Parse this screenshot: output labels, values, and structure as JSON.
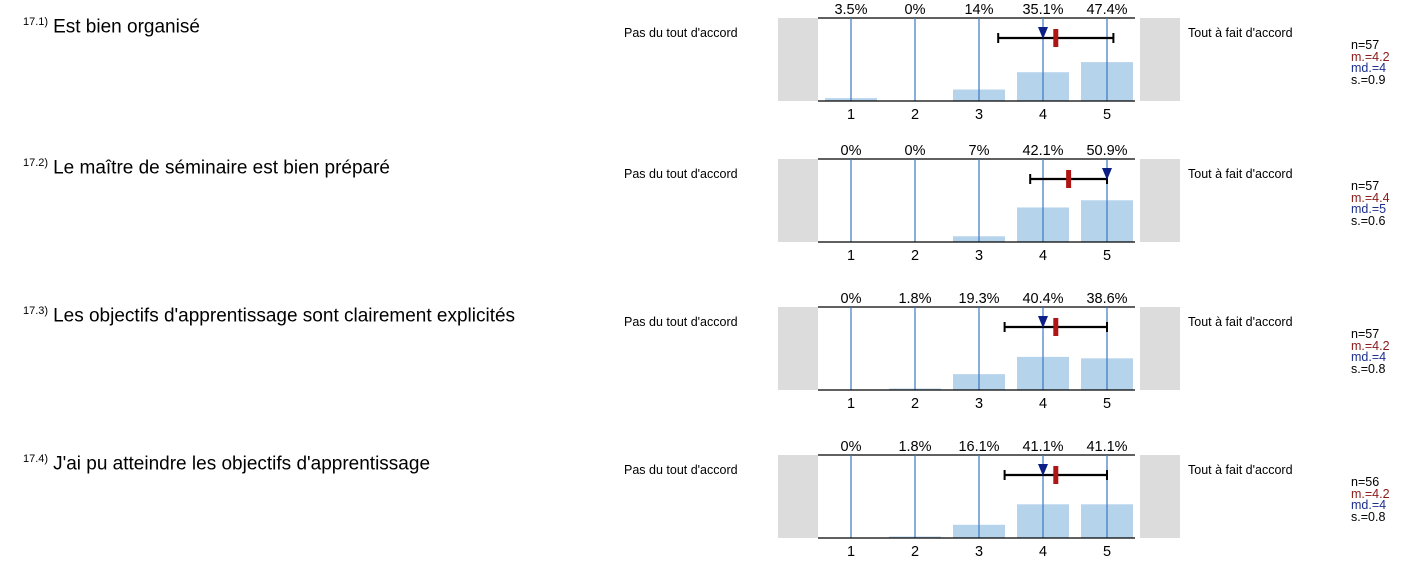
{
  "items": [
    {
      "number": "17.1)",
      "question": "Est bien organisé",
      "left_label": "Pas du tout d'accord",
      "right_label": "Tout à fait d'accord",
      "percent_labels": [
        "3.5%",
        "0%",
        "14%",
        "35.1%",
        "47.4%"
      ],
      "stats": {
        "n": "n=57",
        "mean": "m.=4.2",
        "median": "md.=4",
        "sd": "s.=0.9"
      }
    },
    {
      "number": "17.2)",
      "question": "Le maître de séminaire est bien préparé",
      "left_label": "Pas du tout d'accord",
      "right_label": "Tout à fait d'accord",
      "percent_labels": [
        "0%",
        "0%",
        "7%",
        "42.1%",
        "50.9%"
      ],
      "stats": {
        "n": "n=57",
        "mean": "m.=4.4",
        "median": "md.=5",
        "sd": "s.=0.6"
      }
    },
    {
      "number": "17.3)",
      "question": "Les objectifs d'apprentissage sont clairement explicités",
      "left_label": "Pas du tout d'accord",
      "right_label": "Tout à fait d'accord",
      "percent_labels": [
        "0%",
        "1.8%",
        "19.3%",
        "40.4%",
        "38.6%"
      ],
      "stats": {
        "n": "n=57",
        "mean": "m.=4.2",
        "median": "md.=4",
        "sd": "s.=0.8"
      }
    },
    {
      "number": "17.4)",
      "question": "J'ai pu atteindre les objectifs d'apprentissage",
      "left_label": "Pas du tout d'accord",
      "right_label": "Tout à fait d'accord",
      "percent_labels": [
        "0%",
        "1.8%",
        "16.1%",
        "41.1%",
        "41.1%"
      ],
      "stats": {
        "n": "n=56",
        "mean": "m.=4.2",
        "median": "md.=4",
        "sd": "s.=0.8"
      }
    }
  ],
  "chart_data": [
    {
      "type": "bar",
      "categories": [
        "1",
        "2",
        "3",
        "4",
        "5"
      ],
      "values": [
        3.5,
        0,
        14,
        35.1,
        47.4
      ],
      "ylim": [
        0,
        100
      ],
      "mean": 4.2,
      "median": 4,
      "sd": 0.9,
      "n": 57
    },
    {
      "type": "bar",
      "categories": [
        "1",
        "2",
        "3",
        "4",
        "5"
      ],
      "values": [
        0,
        0,
        7,
        42.1,
        50.9
      ],
      "ylim": [
        0,
        100
      ],
      "mean": 4.4,
      "median": 5,
      "sd": 0.6,
      "n": 57
    },
    {
      "type": "bar",
      "categories": [
        "1",
        "2",
        "3",
        "4",
        "5"
      ],
      "values": [
        0,
        1.8,
        19.3,
        40.4,
        38.6
      ],
      "ylim": [
        0,
        100
      ],
      "mean": 4.2,
      "median": 4,
      "sd": 0.8,
      "n": 57
    },
    {
      "type": "bar",
      "categories": [
        "1",
        "2",
        "3",
        "4",
        "5"
      ],
      "values": [
        0,
        1.8,
        16.1,
        41.1,
        41.1
      ],
      "ylim": [
        0,
        100
      ],
      "mean": 4.2,
      "median": 4,
      "sd": 0.8,
      "n": 56
    }
  ],
  "colors": {
    "bar": "#b6d3ec",
    "gridline": "#3a78c4",
    "mean_marker": "#b01515",
    "median_marker": "#0b1f86",
    "side_panel": "#dcdcdc",
    "sd_line": "#000000"
  }
}
